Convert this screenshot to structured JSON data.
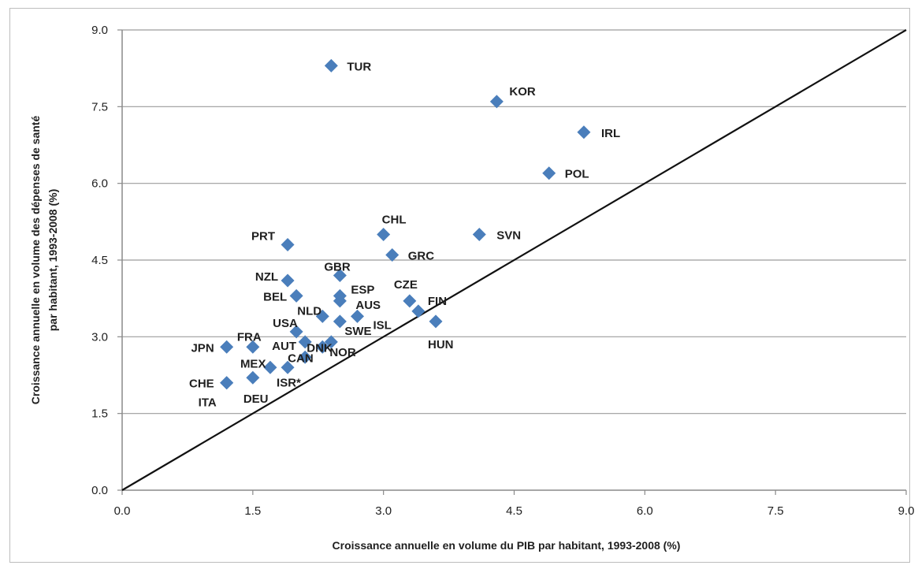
{
  "chart_data": {
    "type": "scatter",
    "xlabel": "Croissance annuelle en volume du PIB par habitant, 1993-2008 (%)",
    "ylabel_lines": [
      "Croissance annuelle en volume des dépenses de santé",
      "par habitant, 1993-2008 (%)"
    ],
    "xlim": [
      0,
      9
    ],
    "ylim": [
      0,
      9
    ],
    "x_ticks": [
      "0.0",
      "1.5",
      "3.0",
      "4.5",
      "6.0",
      "7.5",
      "9.0"
    ],
    "y_ticks": [
      "0.0",
      "1.5",
      "3.0",
      "4.5",
      "6.0",
      "7.5",
      "9.0"
    ],
    "grid": "horizontal",
    "reference_line": "y = x",
    "marker": "diamond",
    "marker_color": "#4a7ebb",
    "points": [
      {
        "label": "TUR",
        "x": 2.4,
        "y": 8.3
      },
      {
        "label": "KOR",
        "x": 4.3,
        "y": 7.6
      },
      {
        "label": "IRL",
        "x": 5.3,
        "y": 7.0
      },
      {
        "label": "POL",
        "x": 4.9,
        "y": 6.2
      },
      {
        "label": "CHL",
        "x": 3.0,
        "y": 5.0
      },
      {
        "label": "SVN",
        "x": 4.1,
        "y": 5.0
      },
      {
        "label": "PRT",
        "x": 1.9,
        "y": 4.8
      },
      {
        "label": "GRC",
        "x": 3.1,
        "y": 4.6
      },
      {
        "label": "GBR",
        "x": 2.5,
        "y": 4.2
      },
      {
        "label": "NZL",
        "x": 1.9,
        "y": 4.1
      },
      {
        "label": "BEL",
        "x": 2.0,
        "y": 3.8
      },
      {
        "label": "ESP",
        "x": 2.5,
        "y": 3.8
      },
      {
        "label": "AUS",
        "x": 2.5,
        "y": 3.7
      },
      {
        "label": "CZE",
        "x": 3.3,
        "y": 3.7
      },
      {
        "label": "FIN",
        "x": 3.4,
        "y": 3.5
      },
      {
        "label": "NLD",
        "x": 2.3,
        "y": 3.4
      },
      {
        "label": "ISL",
        "x": 2.7,
        "y": 3.4
      },
      {
        "label": "HUN",
        "x": 3.6,
        "y": 3.3
      },
      {
        "label": "SWE",
        "x": 2.5,
        "y": 3.3
      },
      {
        "label": "USA",
        "x": 2.0,
        "y": 3.1
      },
      {
        "label": "AUT",
        "x": 2.1,
        "y": 2.9
      },
      {
        "label": "DNK",
        "x": 2.3,
        "y": 2.8
      },
      {
        "label": "NOR",
        "x": 2.4,
        "y": 2.9
      },
      {
        "label": "JPN",
        "x": 1.2,
        "y": 2.8
      },
      {
        "label": "FRA",
        "x": 1.5,
        "y": 2.8
      },
      {
        "label": "CAN",
        "x": 2.1,
        "y": 2.6
      },
      {
        "label": "MEX",
        "x": 1.7,
        "y": 2.4
      },
      {
        "label": "ISR*",
        "x": 1.9,
        "y": 2.4
      },
      {
        "label": "DEU",
        "x": 1.5,
        "y": 2.2
      },
      {
        "label": "CHE",
        "x": 1.2,
        "y": 2.1
      },
      {
        "label": "ITA",
        "x": 1.2,
        "y": 2.1
      }
    ]
  }
}
